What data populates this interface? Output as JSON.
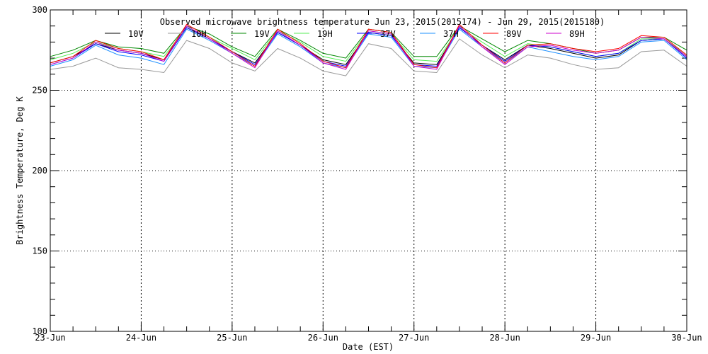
{
  "chart_data": {
    "type": "line",
    "title": "Observed microwave brightness temperature Jun 23, 2015(2015174) - Jun 29, 2015(2015180)",
    "xlabel": "Date (EST)",
    "ylabel": "Brightness Temperature, Deg K",
    "ylim": [
      100,
      300
    ],
    "yticks": [
      "100",
      "150",
      "200",
      "250",
      "300"
    ],
    "xticks": [
      "23-Jun",
      "24-Jun",
      "25-Jun",
      "26-Jun",
      "27-Jun",
      "28-Jun",
      "29-Jun",
      "30-Jun"
    ],
    "xlim_days": [
      0,
      7
    ],
    "x_step_hours": 6,
    "grid": "dotted, major ticks",
    "legend": "top",
    "series": [
      {
        "name": "10V",
        "color": "#000000",
        "values": [
          267,
          271,
          279,
          275,
          273,
          269,
          289,
          282,
          274,
          267,
          286,
          278,
          269,
          266,
          286,
          284,
          267,
          266,
          289,
          278,
          269,
          278,
          276,
          273,
          270,
          272,
          281,
          282,
          271
        ]
      },
      {
        "name": "10H",
        "color": "#999999",
        "values": [
          263,
          265,
          270,
          264,
          263,
          261,
          281,
          276,
          267,
          262,
          276,
          270,
          262,
          259,
          279,
          276,
          262,
          261,
          282,
          272,
          264,
          272,
          270,
          266,
          263,
          264,
          274,
          275,
          265
        ]
      },
      {
        "name": "19V",
        "color": "#008800",
        "values": [
          271,
          275,
          281,
          277,
          276,
          273,
          290,
          285,
          277,
          271,
          288,
          281,
          273,
          270,
          288,
          286,
          271,
          271,
          290,
          282,
          274,
          281,
          279,
          276,
          273,
          275,
          283,
          283,
          275
        ]
      },
      {
        "name": "19H",
        "color": "#55ee55",
        "values": [
          269,
          273,
          280,
          276,
          274,
          271,
          289,
          283,
          276,
          269,
          287,
          280,
          271,
          268,
          287,
          285,
          269,
          268,
          289,
          280,
          271,
          279,
          277,
          274,
          271,
          273,
          282,
          282,
          272
        ]
      },
      {
        "name": "37V",
        "color": "#0000ff",
        "values": [
          266,
          270,
          279,
          274,
          272,
          268,
          289,
          282,
          274,
          266,
          286,
          278,
          268,
          265,
          286,
          284,
          266,
          265,
          289,
          278,
          268,
          278,
          277,
          274,
          271,
          273,
          281,
          282,
          270
        ]
      },
      {
        "name": "37H",
        "color": "#1e90ff",
        "values": [
          265,
          269,
          278,
          272,
          270,
          266,
          288,
          281,
          273,
          265,
          285,
          277,
          267,
          264,
          285,
          283,
          265,
          264,
          288,
          277,
          267,
          277,
          274,
          271,
          269,
          271,
          280,
          281,
          269
        ]
      },
      {
        "name": "89V",
        "color": "#ff0000",
        "values": [
          267,
          271,
          281,
          276,
          274,
          269,
          291,
          283,
          274,
          265,
          288,
          279,
          268,
          264,
          288,
          286,
          266,
          264,
          291,
          278,
          267,
          278,
          279,
          276,
          274,
          276,
          284,
          283,
          272
        ]
      },
      {
        "name": "89H",
        "color": "#cc00cc",
        "values": [
          266,
          270,
          280,
          275,
          273,
          268,
          290,
          282,
          273,
          264,
          287,
          278,
          267,
          263,
          287,
          285,
          265,
          263,
          290,
          277,
          266,
          277,
          278,
          275,
          273,
          275,
          283,
          282,
          271
        ]
      }
    ]
  }
}
